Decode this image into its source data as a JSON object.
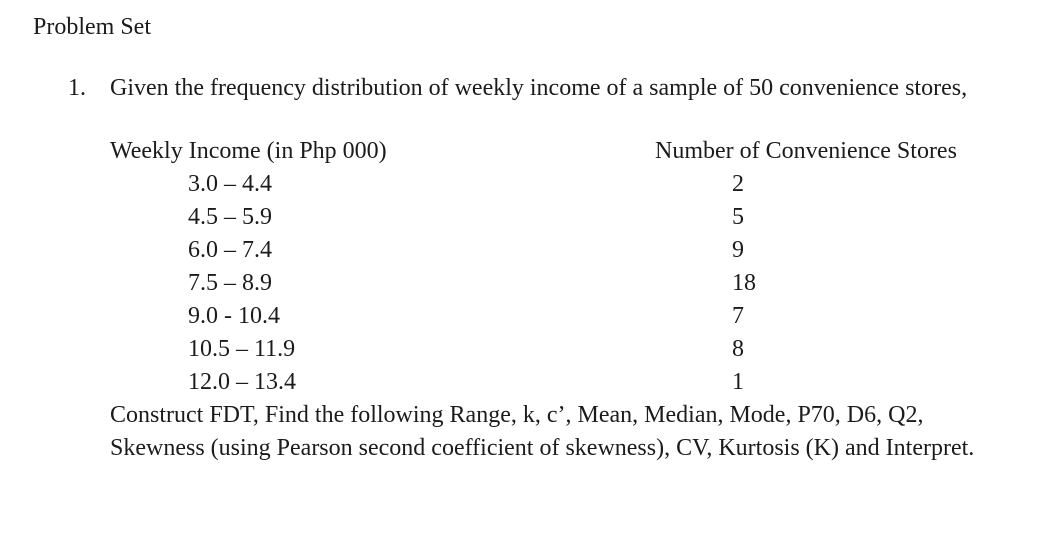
{
  "doc": {
    "title": "Problem Set"
  },
  "problem": {
    "number": "1.",
    "intro": "Given the frequency distribution of weekly income of a sample of 50 convenience stores,"
  },
  "table": {
    "columns": {
      "income": "Weekly Income (in Php 000)",
      "stores": "Number of Convenience Stores"
    },
    "rows": [
      {
        "income": "3.0 – 4.4",
        "stores": "2"
      },
      {
        "income": "4.5 – 5.9",
        "stores": "5"
      },
      {
        "income": "6.0 – 7.4",
        "stores": "9"
      },
      {
        "income": "7.5 – 8.9",
        "stores": "18"
      },
      {
        "income": "9.0 - 10.4",
        "stores": "7"
      },
      {
        "income": "10.5 – 11.9",
        "stores": "8"
      },
      {
        "income": "12.0 – 13.4",
        "stores": "1"
      }
    ],
    "sample_size": 50
  },
  "instructions": "Construct FDT, Find the following Range, k, c’, Mean, Median, Mode, P70, D6, Q2, Skewness (using Pearson second coefficient of skewness), CV, Kurtosis (K) and Interpret.",
  "colors": {
    "text": "#1b1b1b",
    "background": "#ffffff"
  }
}
